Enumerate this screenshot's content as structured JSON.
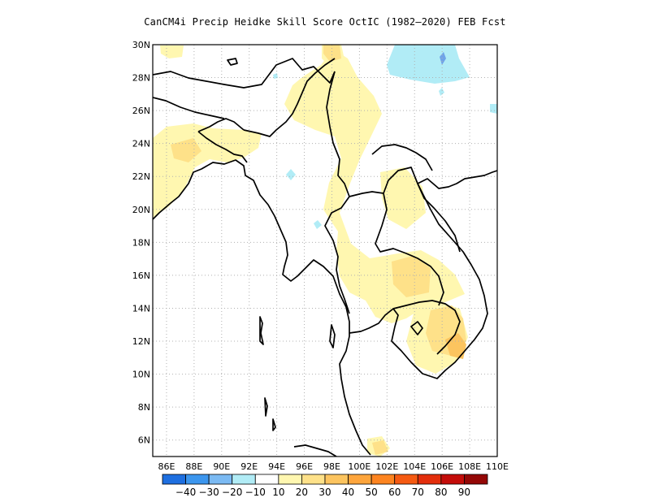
{
  "title": "CanCM4i Precip Heidke Skill Score OctIC (1982–2020) FEB Fcst",
  "map": {
    "lon_range": [
      85,
      110
    ],
    "lat_range": [
      5,
      30
    ],
    "gridlines": "dotted",
    "lon_ticks": [
      "86E",
      "88E",
      "90E",
      "92E",
      "94E",
      "96E",
      "98E",
      "100E",
      "102E",
      "104E",
      "106E",
      "108E",
      "110E"
    ],
    "lat_ticks": [
      "6N",
      "8N",
      "10N",
      "12N",
      "14N",
      "16N",
      "18N",
      "20N",
      "22N",
      "24N",
      "26N",
      "28N",
      "30N"
    ]
  },
  "colorbar": {
    "colors": [
      "#1e6fe0",
      "#3c96ee",
      "#7bbaf3",
      "#b1ecf6",
      "#ffffff",
      "#fff7b0",
      "#fee189",
      "#fcc45f",
      "#fea53c",
      "#fd8420",
      "#f55a12",
      "#e32e0c",
      "#c40d0a",
      "#940806"
    ],
    "labels": [
      "−40",
      "−30",
      "−20",
      "−10",
      "10",
      "20",
      "30",
      "40",
      "50",
      "60",
      "70",
      "80",
      "90"
    ]
  },
  "palette": {
    "cyan": "#b1ecf6",
    "blue": "#6fa3e8",
    "yellow": "#fff7b0",
    "tan": "#fee189",
    "orange": "#fcc45f"
  }
}
